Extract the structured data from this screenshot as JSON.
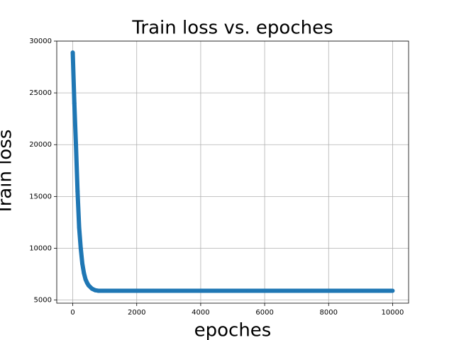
{
  "chart_data": {
    "type": "line",
    "title": "Train loss vs. epoches",
    "x_label": "epoches",
    "y_label": "Train loss",
    "x": [
      0,
      50,
      100,
      150,
      200,
      250,
      300,
      350,
      400,
      450,
      500,
      600,
      700,
      800,
      1000,
      1500,
      2000,
      2500,
      3000,
      3500,
      4000,
      4500,
      5000,
      5500,
      6000,
      6500,
      7000,
      7500,
      8000,
      8500,
      9000,
      9500,
      10000
    ],
    "series": [
      {
        "name": "Train loss",
        "color": "#1f77b4",
        "values": [
          28900,
          24000,
          20000,
          15500,
          12000,
          10000,
          8500,
          7600,
          7000,
          6650,
          6400,
          6100,
          5950,
          5900,
          5900,
          5900,
          5900,
          5900,
          5900,
          5900,
          5900,
          5900,
          5900,
          5900,
          5900,
          5900,
          5900,
          5900,
          5900,
          5900,
          5900,
          5900,
          5900
        ]
      }
    ],
    "xlim": [
      -500,
      10500
    ],
    "ylim": [
      4700,
      30000
    ],
    "xticks": [
      0,
      2000,
      4000,
      6000,
      8000,
      10000
    ],
    "yticks": [
      5000,
      10000,
      15000,
      20000,
      25000,
      30000
    ],
    "grid": true
  }
}
